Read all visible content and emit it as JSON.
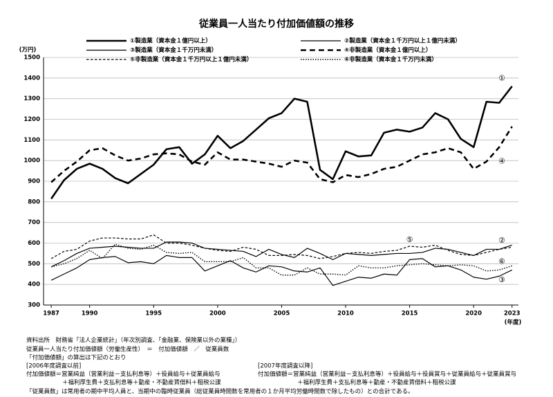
{
  "chart_data": {
    "type": "line",
    "title": "従業員一人当たり付加価値額の推移",
    "y_label": "(万円)",
    "x_label": "(年度)",
    "x": [
      1987,
      1988,
      1989,
      1990,
      1991,
      1992,
      1993,
      1994,
      1995,
      1996,
      1997,
      1998,
      1999,
      2000,
      2001,
      2002,
      2003,
      2004,
      2005,
      2006,
      2007,
      2008,
      2009,
      2010,
      2011,
      2012,
      2013,
      2014,
      2015,
      2016,
      2017,
      2018,
      2019,
      2020,
      2021,
      2022,
      2023
    ],
    "xlim": [
      1986.4,
      2023.5
    ],
    "xticks": [
      1987,
      1990,
      1995,
      2000,
      2005,
      2010,
      2015,
      2020,
      2023
    ],
    "ylim": [
      300,
      1500
    ],
    "yticks": [
      300,
      400,
      500,
      600,
      700,
      800,
      900,
      1000,
      1100,
      1200,
      1300,
      1400,
      1500
    ],
    "grid": true,
    "series": [
      {
        "name": "①製造業（資本金１億円以上）",
        "color": "#000000",
        "line_style": "solid",
        "width": 2.6,
        "values": [
          815,
          905,
          960,
          985,
          960,
          915,
          890,
          935,
          980,
          1055,
          1065,
          985,
          1030,
          1120,
          1060,
          1095,
          1150,
          1205,
          1230,
          1300,
          1285,
          955,
          910,
          1045,
          1020,
          1025,
          1135,
          1150,
          1140,
          1160,
          1230,
          1200,
          1105,
          1065,
          1285,
          1280,
          1360
        ]
      },
      {
        "name": "②製造業（資本金１千万円以上１億円未満）",
        "color": "#000000",
        "line_style": "solid",
        "width": 1.2,
        "values": [
          485,
          515,
          550,
          575,
          580,
          585,
          580,
          575,
          575,
          605,
          605,
          600,
          575,
          570,
          565,
          560,
          535,
          570,
          545,
          530,
          575,
          550,
          520,
          550,
          545,
          540,
          545,
          550,
          550,
          555,
          575,
          570,
          555,
          540,
          570,
          570,
          590
        ]
      },
      {
        "name": "③製造業（資本金１千万円未満）",
        "color": "#000000",
        "line_style": "solid",
        "width": 1.2,
        "values": [
          420,
          450,
          480,
          520,
          530,
          535,
          505,
          510,
          500,
          540,
          530,
          530,
          465,
          490,
          515,
          480,
          460,
          490,
          485,
          465,
          460,
          480,
          395,
          415,
          435,
          430,
          450,
          445,
          520,
          525,
          485,
          490,
          470,
          435,
          425,
          440,
          470
        ]
      },
      {
        "name": "④非製造業（資本金１億円以上）",
        "color": "#000000",
        "line_style": "dashed",
        "width": 2.6,
        "values": [
          895,
          950,
          995,
          1050,
          1060,
          1025,
          1000,
          1010,
          1030,
          1035,
          1030,
          995,
          980,
          1040,
          1005,
          1005,
          995,
          985,
          970,
          1000,
          990,
          910,
          895,
          930,
          920,
          935,
          960,
          970,
          1000,
          1030,
          1040,
          1060,
          1040,
          960,
          995,
          1065,
          1165
        ]
      },
      {
        "name": "⑤非製造業（資本金１千万円以上１億円未満）",
        "color": "#000000",
        "line_style": "dashed",
        "width": 1.2,
        "values": [
          525,
          560,
          570,
          610,
          625,
          625,
          620,
          620,
          640,
          600,
          600,
          590,
          575,
          565,
          560,
          580,
          570,
          540,
          540,
          545,
          540,
          525,
          535,
          550,
          555,
          550,
          560,
          565,
          585,
          580,
          590,
          565,
          545,
          540,
          555,
          570,
          580
        ]
      },
      {
        "name": "⑥非製造業（資本金１千万円未満）",
        "color": "#000000",
        "line_style": "dotted",
        "width": 1.4,
        "values": [
          485,
          500,
          525,
          565,
          525,
          595,
          575,
          570,
          590,
          555,
          550,
          555,
          510,
          510,
          510,
          530,
          480,
          480,
          445,
          445,
          480,
          450,
          450,
          445,
          490,
          480,
          480,
          490,
          495,
          500,
          495,
          490,
          495,
          490,
          465,
          470,
          490
        ]
      }
    ],
    "annotations": [
      {
        "text": "①",
        "x": 2022.2,
        "y": 1398
      },
      {
        "text": "②",
        "x": 2022.2,
        "y": 612
      },
      {
        "text": "③",
        "x": 2022.2,
        "y": 420
      },
      {
        "text": "④",
        "x": 2022.2,
        "y": 995
      },
      {
        "text": "⑤",
        "x": 2015.0,
        "y": 615
      },
      {
        "text": "⑥",
        "x": 2022.2,
        "y": 510
      }
    ]
  },
  "notes": {
    "source": "資料出所　財務省「法人企業統計」（年次別調査、「金融業、保険業以外の業種」）",
    "definition": "従業員一人当たり付加価値額（労働生産性）　＝　付加価値額　／　従業員数",
    "calc": "「付加価値額」の算出は下記のとおり",
    "before_label": "[2006年度調査以前]",
    "before_formula": [
      "付加価値額＝営業純益（営業利益－支払利息等）＋役員給与＋従業員給与",
      "＋福利厚生費＋支払利息等＋動産・不動産賃借料＋租税公課"
    ],
    "after_label": "[2007年度調査以降]",
    "after_formula": [
      "付加価値額＝営業純益（営業利益－支払利息等）＋役員給与＋役員賞与＋従業員給与＋従業員賞与",
      "＋福利厚生費＋支払利息等＋動産・不動産賃借料＋租税公課"
    ],
    "employees": "「従業員数」は常用者の期中平均人員と、当期中の臨時従業員（総従業員時間数を常用者の１か月平均労働時間数で除したもの）との合計である。"
  }
}
